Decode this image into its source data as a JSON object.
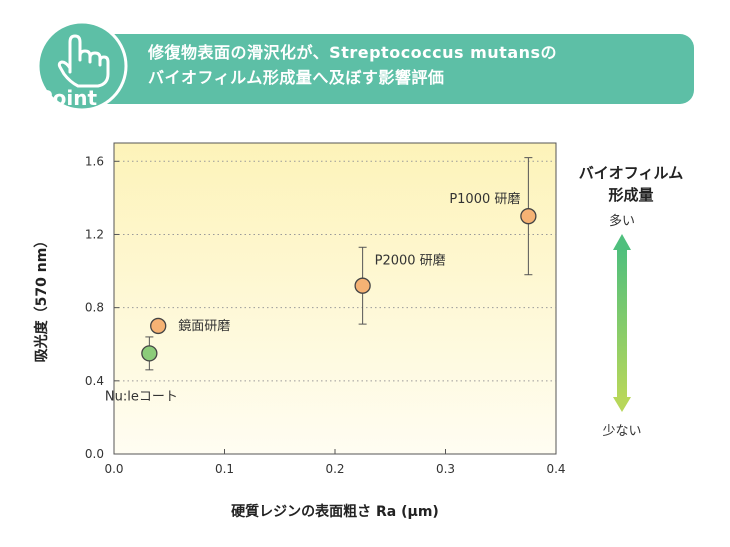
{
  "banner": {
    "badge_label": "Point",
    "title_line1": "修復物表面の滑沢化が、Streptococcus mutansの",
    "title_line2": "バイオフィルム形成量へ及ぼす影響評価",
    "color": "#5dbfa6"
  },
  "legend_scale": {
    "title_line1": "バイオフィルム",
    "title_line2": "形成量",
    "high_label": "多い",
    "low_label": "少ない"
  },
  "chart_data": {
    "type": "scatter",
    "xlabel": "硬質レジンの表面粗さ Ra (μm)",
    "ylabel": "吸光度（570 nm）",
    "xlim": [
      0.0,
      0.4
    ],
    "ylim": [
      0.0,
      1.7
    ],
    "xticks": [
      "0.0",
      "0.1",
      "0.2",
      "0.3",
      "0.4"
    ],
    "yticks": [
      "0.0",
      "0.4",
      "0.8",
      "1.2",
      "1.6"
    ],
    "grid": "horizontal dotted",
    "points": [
      {
        "label": "Nu:leコート",
        "x": 0.032,
        "y": 0.55,
        "err": 0.09,
        "color": "#8ccc7a"
      },
      {
        "label": "鏡面研磨",
        "x": 0.04,
        "y": 0.7,
        "err": 0,
        "color": "#f5b274"
      },
      {
        "label": "P2000 研磨",
        "x": 0.225,
        "y": 0.92,
        "err": 0.21,
        "color": "#f5b274"
      },
      {
        "label": "P1000 研磨",
        "x": 0.375,
        "y": 1.3,
        "err": 0.32,
        "color": "#f5b274"
      }
    ]
  }
}
